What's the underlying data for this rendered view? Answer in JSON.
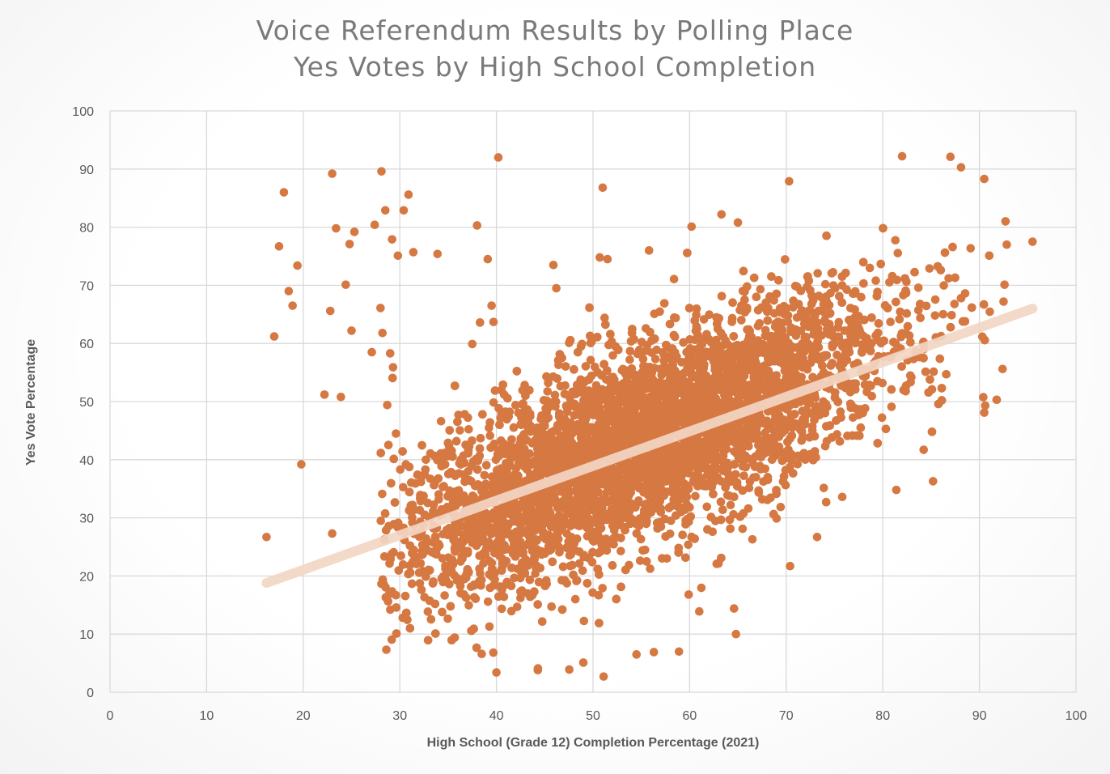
{
  "chart_data": {
    "type": "scatter",
    "title": "Voice Referendum Results by Polling Place",
    "subtitle": "Yes Votes by High School Completion",
    "xlabel": "High School (Grade 12) Completion Percentage (2021)",
    "ylabel": "Yes Vote Percentage",
    "xlim": [
      0,
      100
    ],
    "ylim": [
      0,
      100
    ],
    "xticks": [
      0,
      10,
      20,
      30,
      40,
      50,
      60,
      70,
      80,
      90,
      100
    ],
    "yticks": [
      0,
      10,
      20,
      30,
      40,
      50,
      60,
      70,
      80,
      90,
      100
    ],
    "grid": true,
    "legend": "none",
    "colors": {
      "points": "#d67842",
      "trendline": "#f3d6c4",
      "grid": "#d9d9d9"
    },
    "trendline": {
      "type": "linear",
      "x": [
        16.2,
        95.5
      ],
      "y": [
        18.8,
        66.0
      ]
    },
    "series": [
      {
        "points_note_count": 7000,
        "distribution": {
          "x_mean": 55,
          "x_sd": 13,
          "slope": 0.7,
          "intercept": 4,
          "resid_sd": 8.3
        },
        "outliers": [
          [
            16.2,
            26.7
          ],
          [
            17.0,
            61.2
          ],
          [
            17.5,
            76.7
          ],
          [
            18.0,
            86.0
          ],
          [
            18.5,
            69.0
          ],
          [
            18.9,
            66.5
          ],
          [
            19.4,
            73.4
          ],
          [
            19.8,
            39.2
          ],
          [
            22.2,
            51.2
          ],
          [
            22.8,
            65.6
          ],
          [
            23.0,
            27.3
          ],
          [
            23.0,
            89.2
          ],
          [
            23.4,
            79.8
          ],
          [
            23.9,
            50.8
          ],
          [
            24.4,
            70.1
          ],
          [
            24.8,
            77.1
          ],
          [
            25.0,
            62.2
          ],
          [
            25.3,
            79.2
          ],
          [
            27.1,
            58.5
          ],
          [
            27.4,
            80.4
          ],
          [
            28.0,
            66.1
          ],
          [
            28.1,
            89.6
          ],
          [
            28.2,
            61.8
          ],
          [
            28.5,
            82.9
          ],
          [
            28.7,
            49.4
          ],
          [
            29.0,
            58.3
          ],
          [
            29.2,
            77.9
          ],
          [
            29.3,
            55.9
          ],
          [
            29.6,
            44.5
          ],
          [
            29.8,
            75.1
          ],
          [
            30.4,
            82.9
          ],
          [
            30.9,
            85.6
          ],
          [
            31.4,
            75.7
          ],
          [
            33.9,
            75.4
          ],
          [
            37.5,
            59.9
          ],
          [
            38.0,
            80.3
          ],
          [
            38.3,
            63.6
          ],
          [
            39.1,
            74.5
          ],
          [
            39.5,
            66.5
          ],
          [
            39.7,
            63.7
          ],
          [
            40.2,
            92.0
          ],
          [
            45.9,
            73.5
          ],
          [
            46.2,
            69.5
          ],
          [
            50.7,
            74.8
          ],
          [
            51.0,
            86.8
          ],
          [
            51.2,
            64.4
          ],
          [
            51.5,
            74.5
          ],
          [
            55.8,
            76.0
          ],
          [
            60.2,
            80.1
          ],
          [
            63.3,
            82.2
          ],
          [
            65.0,
            80.8
          ],
          [
            70.3,
            87.9
          ],
          [
            82.0,
            92.2
          ],
          [
            87.0,
            92.1
          ],
          [
            88.1,
            90.3
          ],
          [
            90.5,
            88.3
          ],
          [
            95.5,
            77.5
          ],
          [
            92.7,
            81.0
          ],
          [
            92.6,
            70.1
          ],
          [
            92.5,
            67.2
          ],
          [
            92.4,
            55.6
          ],
          [
            90.6,
            49.3
          ],
          [
            90.5,
            48.1
          ],
          [
            85.2,
            36.3
          ],
          [
            81.4,
            34.8
          ],
          [
            75.8,
            33.6
          ],
          [
            73.2,
            26.7
          ],
          [
            70.4,
            21.7
          ],
          [
            64.8,
            10.0
          ],
          [
            64.6,
            14.4
          ],
          [
            58.9,
            7.0
          ],
          [
            51.1,
            2.7
          ],
          [
            40.0,
            3.4
          ],
          [
            44.3,
            4.1
          ],
          [
            49.0,
            5.1
          ],
          [
            54.5,
            6.5
          ],
          [
            56.3,
            6.9
          ],
          [
            61.0,
            13.9
          ],
          [
            59.9,
            16.8
          ],
          [
            62.8,
            22.1
          ],
          [
            66.5,
            26.3
          ],
          [
            69.0,
            29.9
          ]
        ]
      }
    ]
  }
}
